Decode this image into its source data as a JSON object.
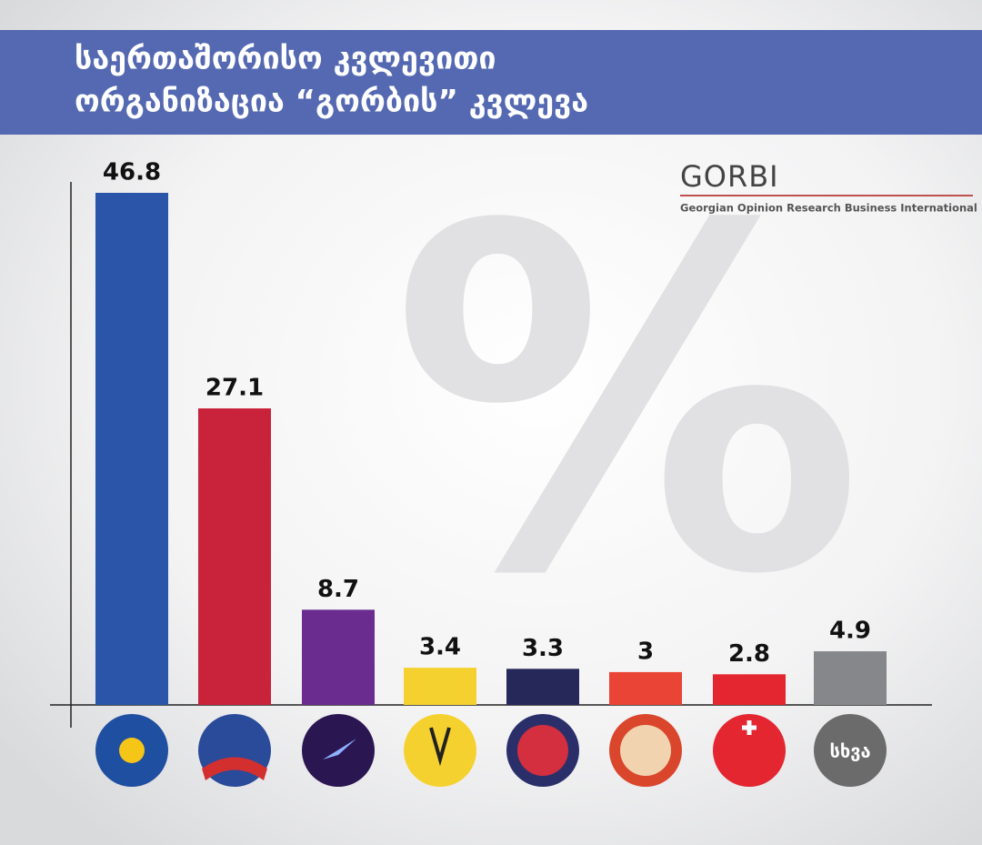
{
  "header": {
    "title_lines": [
      "საერთაშორისო კვლევითი",
      "ორგანიზაცია “გორბის” კვლევა"
    ]
  },
  "logo": {
    "name": "GORBI",
    "subtitle": "Georgian Opinion Research Business International"
  },
  "watermark": "%",
  "chart_data": {
    "type": "bar",
    "categories": [
      null,
      null,
      null,
      null,
      null,
      null,
      null,
      "სხვა"
    ],
    "values": [
      46.8,
      27.1,
      8.7,
      3.4,
      3.3,
      3,
      2.8,
      4.9
    ],
    "colors": [
      "#2a55a8",
      "#c8233a",
      "#6a2d8f",
      "#f5d130",
      "#27285a",
      "#e94435",
      "#e3262f",
      "#86878a"
    ]
  }
}
